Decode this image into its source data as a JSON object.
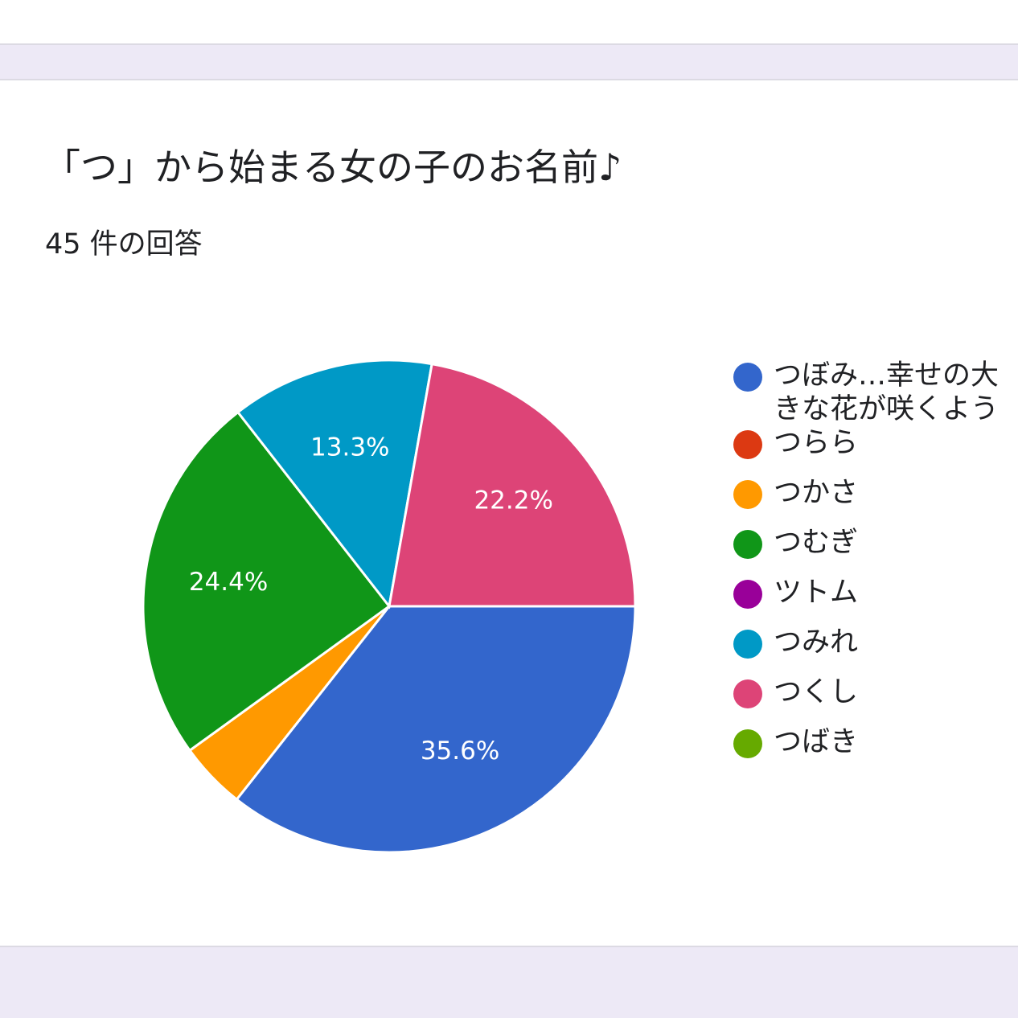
{
  "chart_data": {
    "type": "pie",
    "title": "「つ」から始まる女の子のお名前♪",
    "subtitle": "45 件の回答",
    "legend_position": "right",
    "categories": [
      "つぼみ…幸せの大きな花が咲くように",
      "つらら",
      "つかさ",
      "つむぎ",
      "ツトム",
      "つみれ",
      "つくし",
      "つばき"
    ],
    "values": [
      35.6,
      0,
      4.4,
      24.4,
      0,
      13.3,
      22.2,
      0
    ],
    "data_labels": [
      "35.6%",
      "",
      "",
      "24.4%",
      "",
      "13.3%",
      "22.2%",
      ""
    ],
    "colors": [
      "#3366cc",
      "#dc3912",
      "#ff9900",
      "#109618",
      "#990099",
      "#0099c6",
      "#dd4477",
      "#66aa00"
    ]
  }
}
